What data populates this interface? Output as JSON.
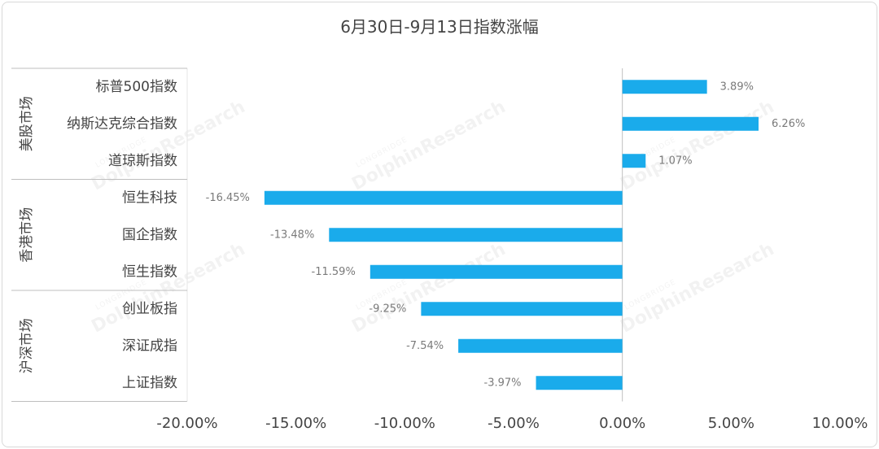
{
  "chart_data": {
    "type": "bar",
    "orientation": "horizontal",
    "title": "6月30日-9月13日指数涨幅",
    "groups": [
      {
        "name": "美股市场",
        "categories": [
          "标普500指数",
          "纳斯达克综合指数",
          "道琼斯指数"
        ],
        "values": [
          3.89,
          6.26,
          1.07
        ]
      },
      {
        "name": "香港市场",
        "categories": [
          "恒生科技",
          "国企指数",
          "恒生指数"
        ],
        "values": [
          -16.45,
          -13.48,
          -11.59
        ]
      },
      {
        "name": "沪深市场",
        "categories": [
          "创业板指",
          "深证成指",
          "上证指数"
        ],
        "values": [
          -9.25,
          -7.54,
          -3.97
        ]
      }
    ],
    "data_labels": [
      "3.89%",
      "6.26%",
      "1.07%",
      "-16.45%",
      "-13.48%",
      "-11.59%",
      "-9.25%",
      "-7.54%",
      "-3.97%"
    ],
    "xlim": [
      -20,
      10
    ],
    "x_ticks": [
      -20,
      -15,
      -10,
      -5,
      0,
      5,
      10
    ],
    "x_tick_labels": [
      "-20.00%",
      "-15.00%",
      "-10.00%",
      "-5.00%",
      "0.00%",
      "5.00%",
      "10.00%"
    ],
    "bar_color": "#1AABEB",
    "grid": false,
    "legend": "none",
    "watermark": {
      "text": "DolphinResearch",
      "brand": "LONGBRIDGE"
    }
  }
}
